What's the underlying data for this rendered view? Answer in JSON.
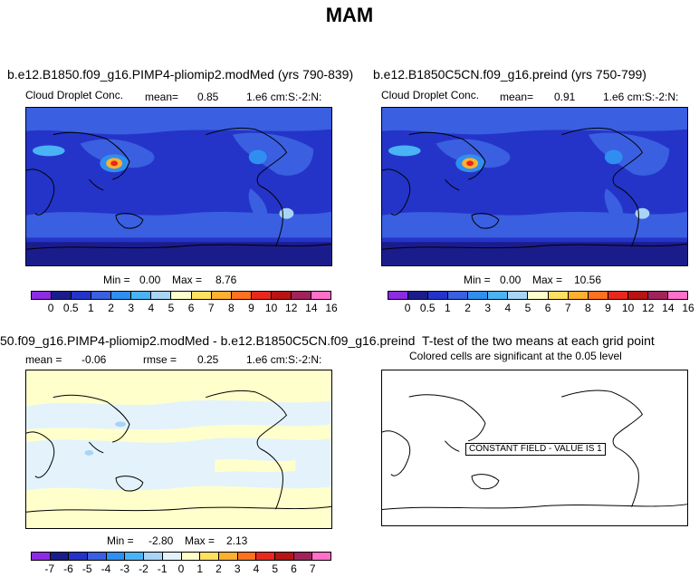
{
  "title": "MAM",
  "panels": {
    "tl": {
      "title": "b.e12.B1850.f09_g16.PIMP4-pliomip2.modMed (yrs 790-839)",
      "variable": "Cloud Droplet Conc.",
      "mean_label": "mean=",
      "mean_value": "0.85",
      "units": "1.e6 cm:S:-2:N:",
      "min_label": "Min =",
      "min_value": "0.00",
      "max_label": "Max =",
      "max_value": "8.76"
    },
    "tr": {
      "title": "b.e12.B1850C5CN.f09_g16.preind (yrs 750-799)",
      "variable": "Cloud Droplet Conc.",
      "mean_label": "mean=",
      "mean_value": "0.91",
      "units": "1.e6 cm:S:-2:N:",
      "min_label": "Min =",
      "min_value": "0.00",
      "max_label": "Max =",
      "max_value": "10.56"
    },
    "bl": {
      "title": "50.f09_g16.PIMP4-pliomip2.modMed - b.e12.B1850C5CN.f09_g16.preind",
      "mean_label": "mean =",
      "mean_value": "-0.06",
      "rmse_label": "rmse =",
      "rmse_value": "0.25",
      "units": "1.e6 cm:S:-2:N:",
      "min_label": "Min =",
      "min_value": "-2.80",
      "max_label": "Max =",
      "max_value": "2.13"
    },
    "br": {
      "title": "T-test of the two means at each grid point",
      "subtitle": "Colored cells are significant at the 0.05 level",
      "stamp": "CONSTANT FIELD - VALUE IS 1"
    }
  },
  "colorbar_abs": {
    "colors": [
      "#8b2be2",
      "#1b1c8c",
      "#2434c8",
      "#3a5fe0",
      "#2f8ff0",
      "#4ab3f5",
      "#a8d4f5",
      "#ffffcc",
      "#ffe060",
      "#ffb030",
      "#ff7020",
      "#e8281c",
      "#b81414",
      "#a0245a",
      "#ff70c8"
    ],
    "labels": [
      "0",
      "0.5",
      "1",
      "2",
      "3",
      "4",
      "5",
      "6",
      "7",
      "8",
      "9",
      "10",
      "12",
      "14",
      "16"
    ]
  },
  "colorbar_diff": {
    "colors": [
      "#8b2be2",
      "#1b1c8c",
      "#2434c8",
      "#3a5fe0",
      "#2f8ff0",
      "#4ab3f5",
      "#a8d4f5",
      "#e4f2fc",
      "#ffffcc",
      "#ffe060",
      "#ffb030",
      "#ff7020",
      "#e8281c",
      "#b81414",
      "#a0245a",
      "#ff70c8"
    ],
    "labels": [
      "-7",
      "-6",
      "-5",
      "-4",
      "-3",
      "-2",
      "-1",
      "0",
      "1",
      "2",
      "3",
      "4",
      "5",
      "6",
      "7"
    ]
  }
}
